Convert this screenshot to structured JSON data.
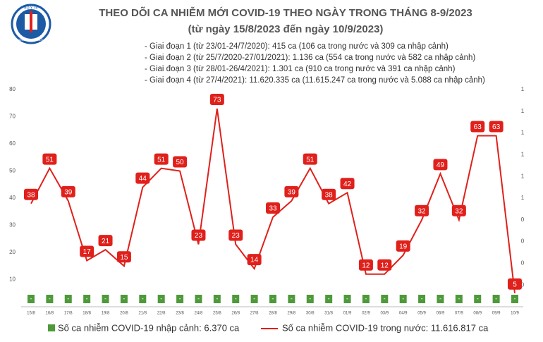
{
  "logo": {
    "top": "BỘ Y TẾ",
    "bottom": "MINISTRY OF HEALTH"
  },
  "chart_data": {
    "type": "line",
    "title": "THEO DÕI CA NHIỄM MỚI COVID-19 THEO NGÀY TRONG THÁNG 8-9/2023",
    "subtitle": "(từ ngày 15/8/2023 đến ngày 10/9/2023)",
    "annotations": [
      "- Giai đoạn 1 (từ 23/01-24/7/2020): 415 ca (106 ca trong nước và 309 ca nhập cảnh)",
      "- Giai đoạn 2 (từ 25/7/2020-27/01/2021): 1.136 ca (554 ca trong nước và 582 ca nhập cảnh)",
      "- Giai đoạn 3 (từ 28/01-26/4/2021): 1.301 ca (910 ca trong nước và 391 ca nhập cảnh)",
      "- Giai đoạn 4 (từ 27/4/2021): 11.620.335 ca (11.615.247 ca trong nước và 5.088 ca nhập cảnh)"
    ],
    "categories": [
      "15/8",
      "16/8",
      "17/8",
      "18/8",
      "19/8",
      "20/8",
      "21/8",
      "22/8",
      "23/8",
      "24/8",
      "25/8",
      "26/8",
      "27/8",
      "28/8",
      "29/8",
      "30/8",
      "31/8",
      "01/9",
      "02/9",
      "03/9",
      "04/9",
      "05/9",
      "06/9",
      "07/9",
      "08/9",
      "09/9",
      "10/9"
    ],
    "series": [
      {
        "name": "Số ca nhiễm COVID-19 nhập cảnh: 6.370 ca",
        "color": "#4e9a3a",
        "axis": "y2",
        "values": [
          0,
          0,
          0,
          0,
          0,
          0,
          0,
          0,
          0,
          0,
          0,
          0,
          0,
          0,
          0,
          0,
          0,
          0,
          0,
          0,
          0,
          0,
          0,
          0,
          0,
          0,
          0
        ],
        "value_labels": [
          "-",
          "-",
          "-",
          "-",
          "-",
          "-",
          "-",
          "-",
          "-",
          "-",
          "-",
          "-",
          "-",
          "-",
          "-",
          "-",
          "-",
          "-",
          "-",
          "-",
          "-",
          "-",
          "-",
          "-",
          "-",
          "-",
          "-"
        ]
      },
      {
        "name": "Số ca nhiễm COVID-19 trong nước: 11.616.817 ca",
        "color": "#e0201b",
        "values": [
          38,
          51,
          39,
          17,
          21,
          15,
          44,
          51,
          50,
          23,
          73,
          23,
          14,
          33,
          39,
          51,
          38,
          42,
          12,
          12,
          19,
          32,
          49,
          32,
          63,
          63,
          5
        ]
      }
    ],
    "ylim": [
      0,
      80
    ],
    "yticks": [
      10,
      20,
      30,
      40,
      50,
      60,
      70,
      80
    ],
    "y2lim": [
      0,
      1
    ],
    "y2ticks": [
      {
        "value": 0.1,
        "label": "0"
      },
      {
        "value": 0.2,
        "label": "0"
      },
      {
        "value": 0.3,
        "label": "0"
      },
      {
        "value": 0.4,
        "label": "0"
      },
      {
        "value": 0.5,
        "label": "1"
      },
      {
        "value": 0.6,
        "label": "1"
      },
      {
        "value": 0.7,
        "label": "1"
      },
      {
        "value": 0.8,
        "label": "1"
      },
      {
        "value": 0.9,
        "label": "1"
      },
      1
    ]
  }
}
